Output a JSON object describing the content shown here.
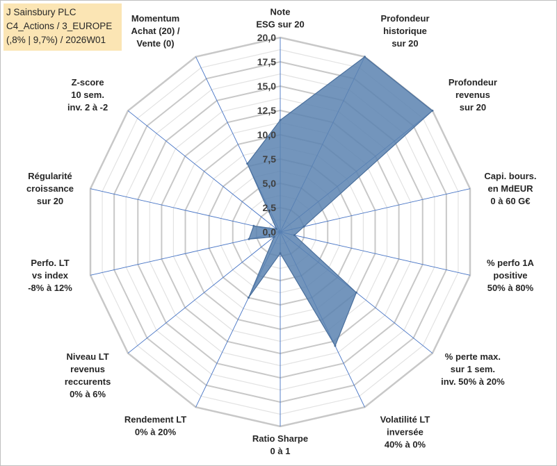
{
  "title_box": {
    "line1": "J Sainsbury PLC",
    "line2": "C4_Actions / 3_EUROPE",
    "line3": "(,8% | 9,7%) / 2026W01"
  },
  "chart_data": {
    "type": "radar",
    "title": "J Sainsbury PLC C4_Actions / 3_EUROPE (,8% | 9,7%) / 2026W01",
    "rlim": [
      0,
      20
    ],
    "tick_step": 2.5,
    "tick_labels": [
      "0,0",
      "2,5",
      "5,0",
      "7,5",
      "10,0",
      "12,5",
      "15,0",
      "17,5",
      "20,0"
    ],
    "grid": true,
    "categories": [
      [
        "Note",
        "ESG sur 20"
      ],
      [
        "Profondeur",
        "historique",
        "sur 20"
      ],
      [
        "Profondeur",
        "revenus",
        "sur 20"
      ],
      [
        "Capi. bours.",
        "en MdEUR",
        "0 à 60 G€"
      ],
      [
        "% perfo 1A",
        "positive",
        "50% à 80%"
      ],
      [
        "% perte max.",
        "sur 1 sem.",
        "inv. 50% à 20%"
      ],
      [
        "Volatilité LT",
        "inversée",
        "40% à 0%"
      ],
      [
        "Ratio Sharpe",
        "0 à 1"
      ],
      [
        "Rendement LT",
        "0% à 20%"
      ],
      [
        "Niveau LT",
        "revenus",
        "reccurents",
        "0% à 6%"
      ],
      [
        "Perfo. LT",
        "vs index",
        "-8% à 12%"
      ],
      [
        "Régularité",
        "croissance",
        "sur 20"
      ],
      [
        "Z-score",
        "10 sem.",
        "inv. 2 à -2"
      ],
      [
        "Momentum",
        "Achat (20) /",
        "Vente (0)"
      ]
    ],
    "values": [
      11.5,
      20,
      20,
      2.5,
      1.5,
      10,
      13,
      2.2,
      7.5,
      0.8,
      3.3,
      2.8,
      0.5,
      7.8
    ],
    "series": [
      {
        "values": [
          11.5,
          20,
          20,
          2.5,
          1.5,
          10,
          13,
          2.2,
          7.5,
          0.8,
          3.3,
          2.8,
          0.5,
          7.8
        ]
      }
    ],
    "colors": {
      "fill": "#5b82b0",
      "stroke": "#4a6f9c",
      "grid": "#c8c8c8",
      "spoke": "#4472c4"
    }
  }
}
